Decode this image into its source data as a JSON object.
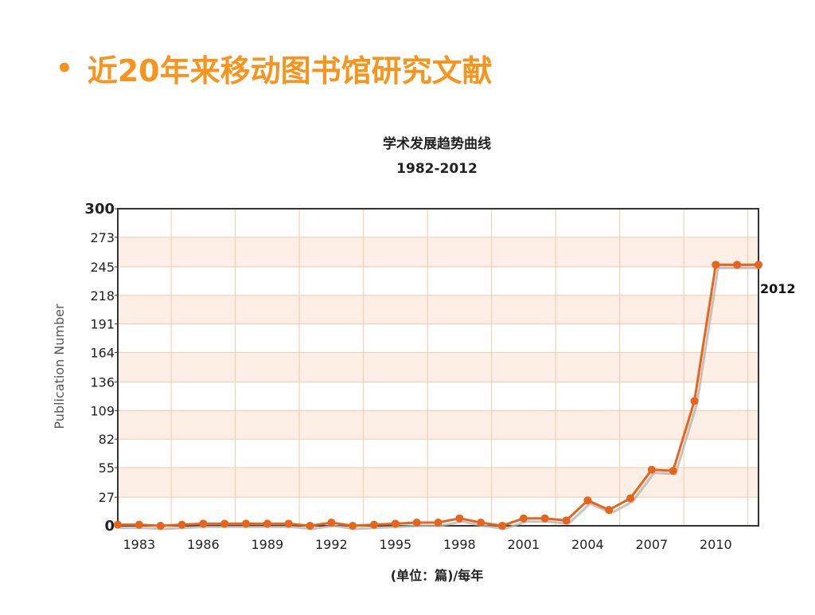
{
  "slide": {
    "bullet": "•",
    "title": "近20年来移动图书馆研究文献"
  },
  "chart_data": {
    "type": "line",
    "title": "学术发展趋势曲线",
    "subtitle": "1982-2012",
    "xlabel": "(单位：篇)/每年",
    "ylabel": "Publication Number",
    "ylim": [
      0,
      300
    ],
    "yticks": [
      0,
      27,
      55,
      82,
      109,
      136,
      164,
      191,
      218,
      245,
      273,
      300
    ],
    "xticks": [
      1983,
      1986,
      1989,
      1992,
      1995,
      1998,
      2001,
      2004,
      2007,
      2010
    ],
    "xlim": [
      1982,
      2012
    ],
    "end_label": "2012",
    "grid": true,
    "colors": {
      "line": "#e8641b",
      "shadow": "#b9b4ae",
      "band": "#fdefe6",
      "grid": "#f3c8b0",
      "axis": "#333333"
    },
    "x": [
      1982,
      1983,
      1984,
      1985,
      1986,
      1987,
      1988,
      1989,
      1990,
      1991,
      1992,
      1993,
      1994,
      1995,
      1996,
      1997,
      1998,
      1999,
      2000,
      2001,
      2002,
      2003,
      2004,
      2005,
      2006,
      2007,
      2008,
      2009,
      2010,
      2011,
      2012
    ],
    "values": [
      1,
      1,
      0,
      1,
      2,
      2,
      2,
      2,
      2,
      0,
      3,
      0,
      1,
      2,
      3,
      3,
      7,
      3,
      0,
      7,
      7,
      5,
      24,
      15,
      26,
      53,
      52,
      118,
      247,
      247,
      247
    ]
  }
}
